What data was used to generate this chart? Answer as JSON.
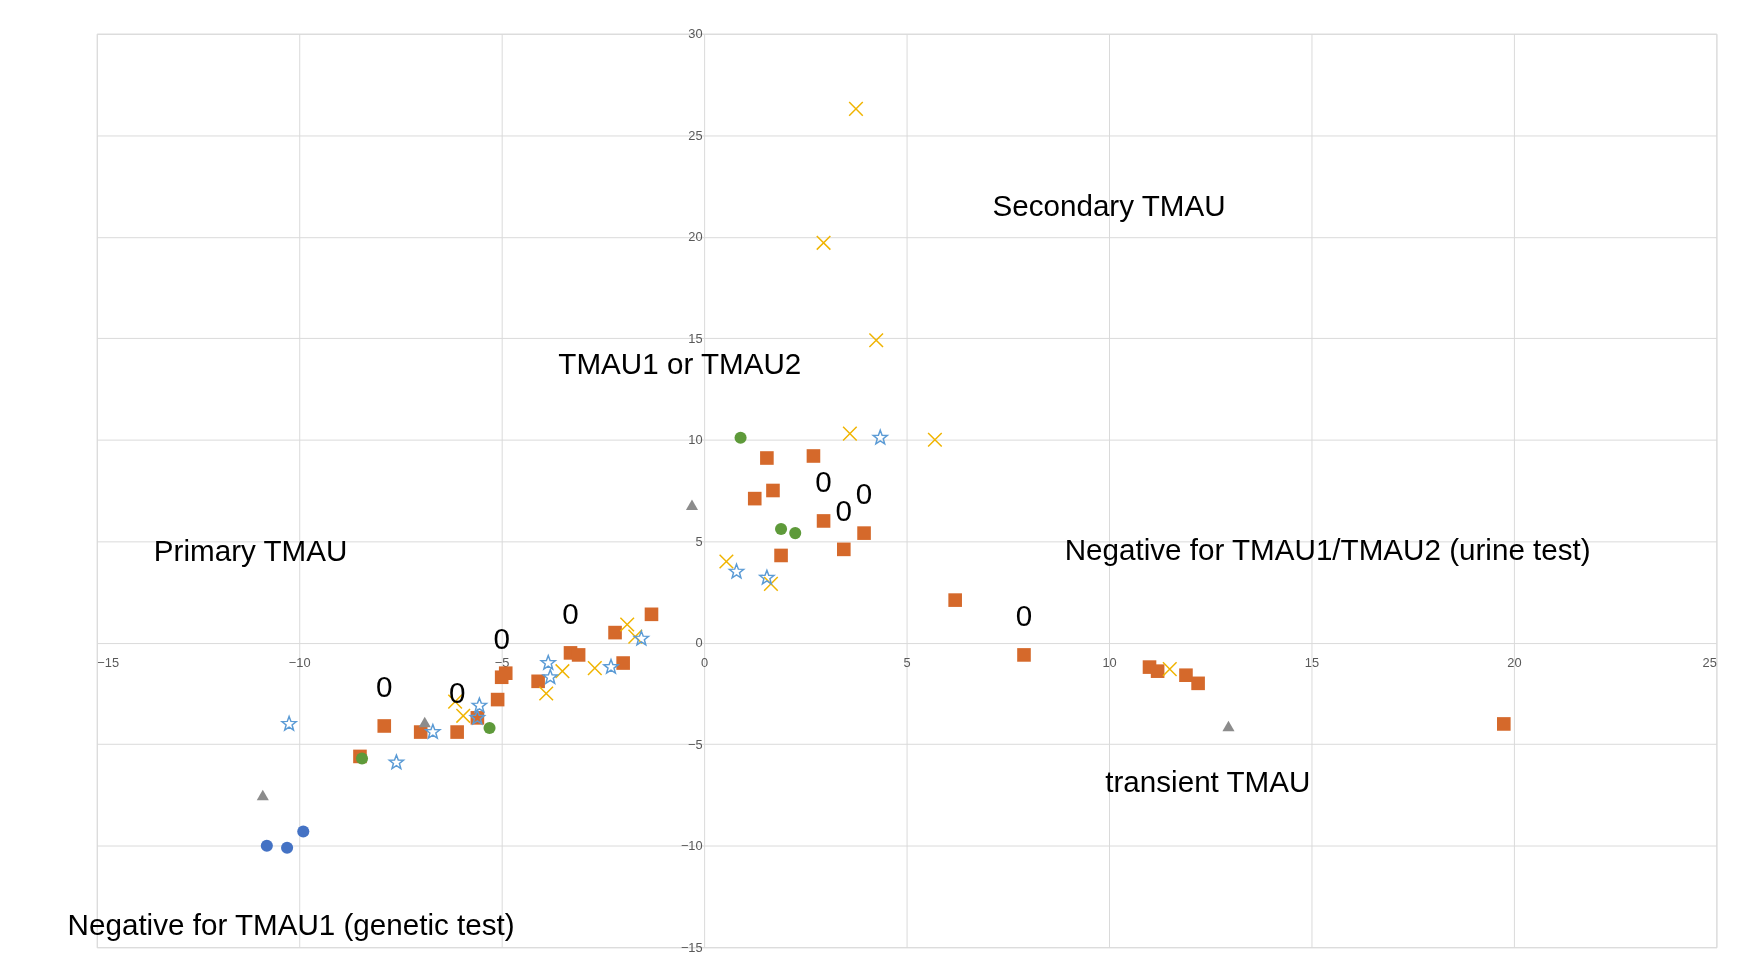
{
  "chart_data": {
    "type": "scatter",
    "annotations": [
      "Primary TMAU",
      "Negative for TMAU1 (genetic test)",
      "TMAU1 or TMAU2",
      "Secondary TMAU",
      "Negative for TMAU1/TMAU2 (urine test)",
      "transient TMAU",
      {
        "text": "0",
        "x": -7.9,
        "y": -4.1
      },
      {
        "text": "0",
        "x": -6.1,
        "y": -4.4
      },
      {
        "text": "0",
        "x": -5.0,
        "y": -1.7
      },
      {
        "text": "0",
        "x": -3.3,
        "y": -0.5
      },
      {
        "text": "0",
        "x": 2.95,
        "y": 6.0
      },
      {
        "text": "0",
        "x": 3.45,
        "y": 4.6
      },
      {
        "text": "0",
        "x": 3.95,
        "y": 5.4
      },
      {
        "text": "0",
        "x": 7.9,
        "y": -0.6
      }
    ],
    "xlim": [
      -15,
      25
    ],
    "xticks": [
      -15,
      -10,
      -5,
      0,
      5,
      10,
      15,
      20,
      25
    ],
    "ylim": [
      -15,
      30
    ],
    "yticks": [
      -15,
      -10,
      -5,
      0,
      5,
      10,
      15,
      20,
      25,
      30
    ],
    "grid": true,
    "legend": false,
    "series": [
      {
        "color": "#4472c4",
        "marker": "circle",
        "x": [
          -10.8,
          -10.3,
          -9.9
        ],
        "values": [
          -10.0,
          -10.1,
          -9.3
        ]
      },
      {
        "color": "#d5692b",
        "marker": "square",
        "x": [
          -8.5,
          -7.9,
          -7.0,
          -6.1,
          -5.6,
          -5.1,
          -5.0,
          -4.9,
          -4.1,
          -3.3,
          -3.1,
          -2.2,
          -2.0,
          -1.3,
          1.55,
          1.25,
          1.7,
          2.7,
          2.95,
          1.9,
          3.45,
          3.95,
          6.2,
          7.9,
          11.0,
          11.2,
          11.9,
          12.2,
          19.75
        ],
        "values": [
          -5.6,
          -4.1,
          -4.4,
          -4.4,
          -3.7,
          -2.8,
          -1.7,
          -1.5,
          -1.9,
          -0.5,
          -0.6,
          0.5,
          -1.0,
          1.4,
          9.1,
          7.1,
          7.5,
          9.2,
          6.0,
          4.3,
          4.6,
          5.4,
          2.1,
          -0.6,
          -1.2,
          -1.4,
          -1.6,
          -2.0,
          -4.0
        ]
      },
      {
        "color": "#8c8c8c",
        "marker": "triangle",
        "x": [
          -10.9,
          -6.9,
          -0.3,
          12.95
        ],
        "values": [
          -7.5,
          -3.9,
          6.8,
          -4.1
        ]
      },
      {
        "color": "#f0b400",
        "marker": "cross",
        "x": [
          3.75,
          2.95,
          4.25,
          3.6,
          5.7,
          0.55,
          1.65,
          -1.9,
          -1.7,
          -2.7,
          -3.5,
          -3.9,
          -6.15,
          -5.95,
          11.5
        ],
        "values": [
          26.3,
          19.7,
          14.9,
          10.3,
          10.0,
          4.0,
          2.9,
          0.9,
          0.3,
          -1.25,
          -1.4,
          -2.5,
          -2.9,
          -3.6,
          -1.3
        ]
      },
      {
        "color": "#5b9bd5",
        "marker": "star",
        "x": [
          -10.25,
          -7.6,
          -6.7,
          -5.55,
          -5.6,
          -3.85,
          -3.8,
          -2.3,
          -1.55,
          0.8,
          1.55,
          4.35
        ],
        "values": [
          -4.0,
          -5.9,
          -4.4,
          -3.1,
          -3.7,
          -1.0,
          -1.7,
          -1.2,
          0.2,
          3.5,
          3.2,
          10.1
        ]
      },
      {
        "color": "#5e9a3a",
        "marker": "circle",
        "x": [
          -8.45,
          -5.3,
          0.9,
          1.9,
          2.25
        ],
        "values": [
          -5.7,
          -4.2,
          10.1,
          5.6,
          5.4
        ]
      }
    ]
  }
}
